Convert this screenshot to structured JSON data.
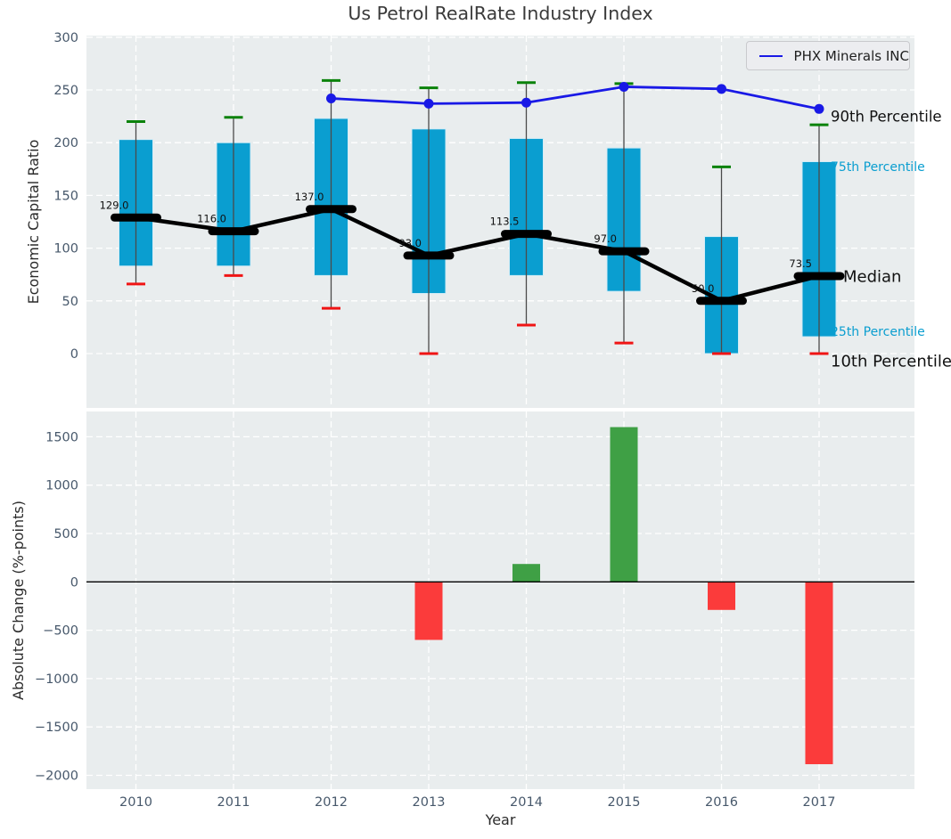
{
  "title": "Us Petrol RealRate Industry Index",
  "xlabel": "Year",
  "legend": {
    "label": "PHX Minerals INC"
  },
  "annotations": {
    "p90": "90th Percentile",
    "p75": "75th Percentile",
    "median": "Median",
    "p25": "25th Percentile",
    "p10": "10th Percentile"
  },
  "colors": {
    "axes_bg": "#e9edee",
    "grid": "#ffffff",
    "tick_label": "#47586b",
    "box": "#0a9ed0",
    "box_edge": "#d2ecf6",
    "whisker": "#4a4a4a",
    "cap_high": "#0a820a",
    "cap_low": "#f01414",
    "median": "#000000",
    "phx_line": "#1919e6",
    "bar_up": "#3fa045",
    "bar_down": "#fb3b3b",
    "zero_line": "#000000",
    "label_cyan": "#0a9ed0"
  },
  "chart_data": [
    {
      "type": "candlestick+line",
      "title": "Us Petrol RealRate Industry Index",
      "ylabel": "Economic Capital Ratio",
      "xlabel": "",
      "x": [
        2010,
        2011,
        2012,
        2013,
        2014,
        2015,
        2016,
        2017
      ],
      "yticks": [
        0,
        50,
        100,
        150,
        200,
        250,
        300
      ],
      "ylim": [
        -51,
        301
      ],
      "grid": true,
      "legend_position": "upper right",
      "series": [
        {
          "name": "90th Percentile",
          "values": [
            220,
            224,
            259,
            252,
            257,
            256,
            177,
            217
          ]
        },
        {
          "name": "75th Percentile",
          "values": [
            203,
            200,
            223,
            213,
            204,
            195,
            111,
            182
          ]
        },
        {
          "name": "Median",
          "values": [
            129,
            116,
            137,
            93,
            113.5,
            97,
            50,
            73.5
          ]
        },
        {
          "name": "25th Percentile",
          "values": [
            83,
            83,
            74,
            57,
            74,
            59,
            0,
            16
          ]
        },
        {
          "name": "10th Percentile",
          "values": [
            66,
            74,
            43,
            0,
            27,
            10,
            0,
            0
          ]
        },
        {
          "name": "PHX Minerals INC",
          "values": [
            null,
            null,
            242,
            237,
            238,
            253,
            251,
            232
          ]
        }
      ],
      "median_labels": [
        "129.0",
        "116.0",
        "137.0",
        "93.0",
        "113.5",
        "97.0",
        "50.0",
        "73.5"
      ]
    },
    {
      "type": "bar",
      "ylabel": "Absolute Change (%-points)",
      "xlabel": "Year",
      "x": [
        2010,
        2011,
        2012,
        2013,
        2014,
        2015,
        2016,
        2017
      ],
      "values": [
        null,
        null,
        null,
        -600,
        185,
        1600,
        -290,
        -1885
      ],
      "yticks": [
        -2000,
        -1500,
        -1000,
        -500,
        0,
        500,
        1000,
        1500
      ],
      "ylim": [
        -2150,
        1760
      ],
      "grid": true
    }
  ]
}
